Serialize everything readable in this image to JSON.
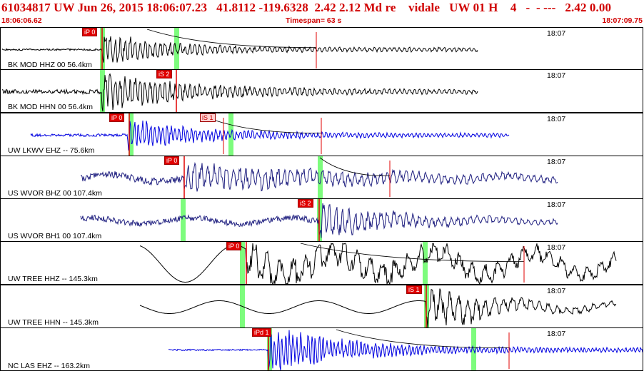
{
  "header": {
    "title": "61034817 UW Jun 26, 2015 18:06:07.23   41.8112 -119.6328  2.42 2.12 Md re    vidale   UW 01 H    4   -  - ---   2.42 0.00",
    "start_time": "18:06:06.62",
    "timespan": "Timespan=  63 s",
    "end_time": "18:07:09.75"
  },
  "colors": {
    "header_red": "#d00000",
    "pick_red": "#e00000",
    "window_green": "#7dfc7d",
    "trace_black": "#000000",
    "trace_blue": "#0000e0",
    "trace_navy": "#202080"
  },
  "traces": [
    {
      "label": "BK MOD HHZ 00 56.4km",
      "time_label": "18:07",
      "color": "#000000",
      "picks": [
        {
          "tag": "iP 0"
        }
      ]
    },
    {
      "label": "BK MOD HHN 00 56.4km",
      "time_label": "18:07",
      "color": "#000000",
      "picks": [
        {
          "tag": "iS 2"
        }
      ]
    },
    {
      "label": "UW LKWV EHZ -- 75.6km",
      "time_label": "18:07",
      "color": "#0000e0",
      "picks": [
        {
          "tag": "iP 0"
        },
        {
          "tag": "iS 1"
        }
      ]
    },
    {
      "label": "US WVOR BHZ 00 107.4km",
      "time_label": "18:07",
      "color": "#202080",
      "picks": [
        {
          "tag": "iP 0"
        }
      ]
    },
    {
      "label": "US WVOR BH1 00 107.4km",
      "time_label": "18:07",
      "color": "#202080",
      "picks": [
        {
          "tag": "iS 2"
        }
      ]
    },
    {
      "label": "UW TREE HHZ -- 145.3km",
      "time_label": "18:07",
      "color": "#000000",
      "picks": [
        {
          "tag": "iP 0"
        }
      ]
    },
    {
      "label": "UW TREE HHN -- 145.3km",
      "time_label": "18:07",
      "color": "#000000",
      "picks": [
        {
          "tag": "iS 1"
        }
      ]
    },
    {
      "label": "NC LAS EHZ -- 163.2km",
      "time_label": "18:07",
      "color": "#0000e0",
      "picks": [
        {
          "tag": "iPd 1"
        }
      ]
    }
  ]
}
